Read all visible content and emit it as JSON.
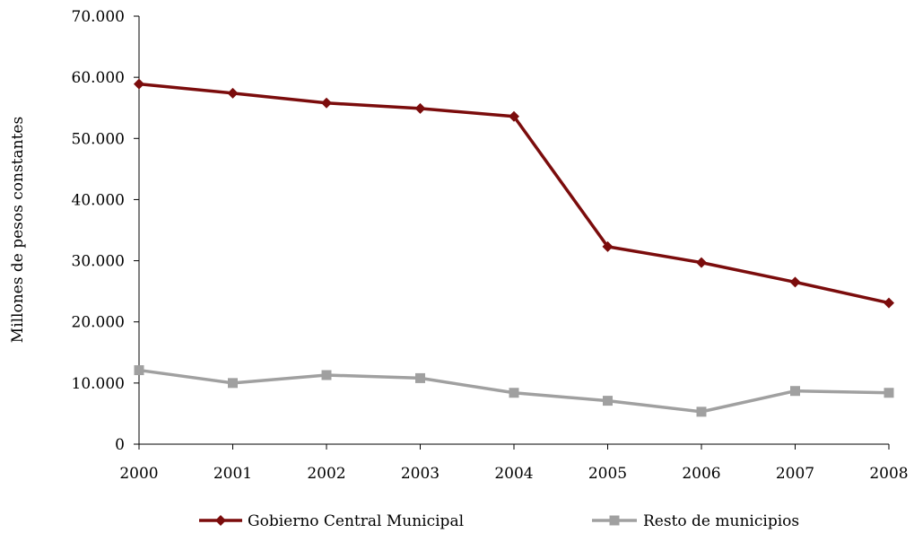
{
  "chart_data": {
    "type": "line",
    "title": "",
    "xlabel": "",
    "ylabel": "Millones de pesos constantes",
    "categories": [
      "2000",
      "2001",
      "2002",
      "2003",
      "2004",
      "2005",
      "2006",
      "2007",
      "2008"
    ],
    "ylim": [
      0,
      70000
    ],
    "yticks": [
      0,
      10000,
      20000,
      30000,
      40000,
      50000,
      60000,
      70000
    ],
    "ytick_labels": [
      "0",
      "10.000",
      "20.000",
      "30.000",
      "40.000",
      "50.000",
      "60.000",
      "70.000"
    ],
    "grid": false,
    "legend_position": "bottom",
    "series": [
      {
        "name": "Gobierno Central Municipal",
        "color": "#7b0c0c",
        "marker": "diamond",
        "values": [
          58900,
          57400,
          55800,
          54900,
          53600,
          32300,
          29700,
          26500,
          23100
        ]
      },
      {
        "name": "Resto de municipios",
        "color": "#a0a0a0",
        "marker": "square",
        "values": [
          12100,
          10000,
          11300,
          10800,
          8400,
          7100,
          5300,
          8700,
          8400
        ]
      }
    ]
  }
}
